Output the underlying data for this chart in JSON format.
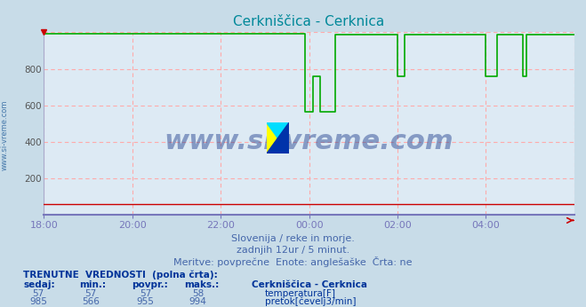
{
  "title": "Cerkniščica - Cerknica",
  "title_color": "#008899",
  "bg_color": "#c8dce8",
  "plot_bg_color": "#ddeaf4",
  "grid_color": "#ffaaaa",
  "axis_color_x": "#8888bb",
  "axis_color_y": "#8888bb",
  "x_tick_labels": [
    "18:00",
    "20:00",
    "22:00",
    "00:00",
    "02:00",
    "04:00"
  ],
  "ylim": [
    0,
    1000
  ],
  "ytick_vals": [
    200,
    400,
    600,
    800
  ],
  "watermark_text": "www.si-vreme.com",
  "watermark_color": "#1a3a8a",
  "watermark_alpha": 0.45,
  "subtitle1": "Slovenija / reke in morje.",
  "subtitle2": "zadnjih 12ur / 5 minut.",
  "subtitle3": "Meritve: povprečne  Enote: anglešaške  Črta: ne",
  "subtitle_color": "#4466aa",
  "table_header": "TRENUTNE  VREDNOSTI  (polna črta):",
  "table_color": "#003399",
  "col_headers": [
    "sedaj:",
    "min.:",
    "povpr.:",
    "maks.:"
  ],
  "station_label": "Cerkniščica - Cerknica",
  "row1_vals": [
    "57",
    "57",
    "57",
    "58"
  ],
  "row2_vals": [
    "985",
    "566",
    "955",
    "994"
  ],
  "legend_label1": "temperatura[F]",
  "legend_label2": "pretok[čevelj3/min]",
  "legend_color1": "#cc0000",
  "legend_color2": "#00aa00",
  "side_label": "www.si-vreme.com",
  "side_label_color": "#4477aa"
}
